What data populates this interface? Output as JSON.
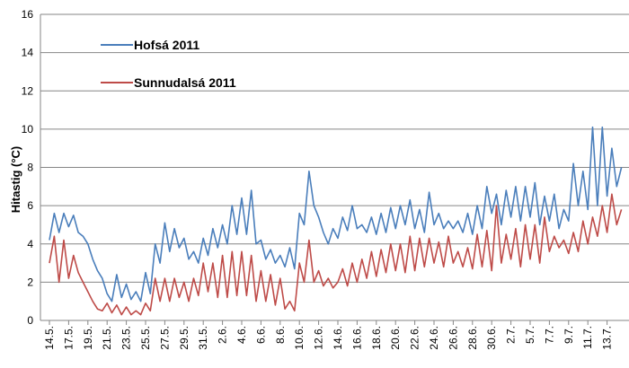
{
  "chart_data": {
    "type": "line",
    "ylabel": "Hitastig (°C)",
    "ylim": [
      0,
      16
    ],
    "yticks": [
      0,
      2,
      4,
      6,
      8,
      10,
      12,
      14,
      16
    ],
    "grid": true,
    "categories": [
      "14.5.",
      null,
      null,
      null,
      "17.5.",
      null,
      null,
      null,
      "19.5.",
      null,
      null,
      null,
      "21.5.",
      null,
      null,
      null,
      "23.5.",
      null,
      null,
      null,
      "25.5.",
      null,
      null,
      null,
      "27.5.",
      null,
      null,
      null,
      "29.5.",
      null,
      null,
      null,
      "31.5.",
      null,
      null,
      null,
      "2.6.",
      null,
      null,
      null,
      "4.6.",
      null,
      null,
      null,
      "6.6.",
      null,
      null,
      null,
      "8.6.",
      null,
      null,
      null,
      "10.6.",
      null,
      null,
      null,
      "12.6.",
      null,
      null,
      null,
      "14.6.",
      null,
      null,
      null,
      "16.6.",
      null,
      null,
      null,
      "18.6.",
      null,
      null,
      null,
      "20.6.",
      null,
      null,
      null,
      "22.6.",
      null,
      null,
      null,
      "24.6.",
      null,
      null,
      null,
      "26.6.",
      null,
      null,
      null,
      "28.6.",
      null,
      null,
      null,
      "30.6.",
      null,
      null,
      null,
      "2.7.",
      null,
      null,
      null,
      "5.7.",
      null,
      null,
      null,
      "7.7.",
      null,
      null,
      null,
      "9.7.",
      null,
      null,
      null,
      "11.7.",
      null,
      null,
      null,
      "13.7.",
      null,
      null,
      null
    ],
    "series": [
      {
        "name": "Hofsá 2011",
        "color": "#4a7ebb",
        "values": [
          4.2,
          5.6,
          4.6,
          5.6,
          4.9,
          5.5,
          4.6,
          4.4,
          4.0,
          3.2,
          2.6,
          2.2,
          1.4,
          1.0,
          2.4,
          1.2,
          1.9,
          1.1,
          1.5,
          1.0,
          2.5,
          1.4,
          4.0,
          3.0,
          5.1,
          3.6,
          4.8,
          3.8,
          4.3,
          3.2,
          3.6,
          3.0,
          4.3,
          3.4,
          4.8,
          3.8,
          5.0,
          4.0,
          6.0,
          4.5,
          6.4,
          4.5,
          6.8,
          4.0,
          4.2,
          3.2,
          3.7,
          3.0,
          3.4,
          2.8,
          3.8,
          2.7,
          5.6,
          5.0,
          7.8,
          6.0,
          5.4,
          4.6,
          4.0,
          4.8,
          4.3,
          5.4,
          4.7,
          6.0,
          4.8,
          5.0,
          4.6,
          5.4,
          4.5,
          5.6,
          4.6,
          5.9,
          4.8,
          6.0,
          5.0,
          6.3,
          4.8,
          5.8,
          4.6,
          6.7,
          5.0,
          5.6,
          4.8,
          5.2,
          4.8,
          5.2,
          4.6,
          5.6,
          4.5,
          6.0,
          4.8,
          7.0,
          5.6,
          6.6,
          5.0,
          6.8,
          5.4,
          7.0,
          5.2,
          7.0,
          5.4,
          7.2,
          5.0,
          6.5,
          5.2,
          6.6,
          4.8,
          5.8,
          5.2,
          8.2,
          6.0,
          7.8,
          5.8,
          10.1,
          6.0,
          10.1,
          6.5,
          9.0,
          7.0,
          8.0
        ]
      },
      {
        "name": "Sunnudalsá 2011",
        "color": "#be4b48",
        "values": [
          3.0,
          4.4,
          2.0,
          4.2,
          2.2,
          3.4,
          2.5,
          2.0,
          1.5,
          1.0,
          0.6,
          0.5,
          0.9,
          0.4,
          0.8,
          0.3,
          0.7,
          0.3,
          0.5,
          0.3,
          0.9,
          0.5,
          2.2,
          1.0,
          2.2,
          1.0,
          2.2,
          1.2,
          2.0,
          1.0,
          2.2,
          1.3,
          3.0,
          1.5,
          3.0,
          1.2,
          3.4,
          1.2,
          3.6,
          1.3,
          3.6,
          1.3,
          3.4,
          1.0,
          2.6,
          1.0,
          2.4,
          0.8,
          2.2,
          0.6,
          1.0,
          0.5,
          3.0,
          2.0,
          4.2,
          2.0,
          2.6,
          1.8,
          2.2,
          1.7,
          2.0,
          2.7,
          1.8,
          3.0,
          2.0,
          3.2,
          2.2,
          3.6,
          2.3,
          3.7,
          2.5,
          4.0,
          2.6,
          4.0,
          2.5,
          4.4,
          2.6,
          4.3,
          2.8,
          4.3,
          3.0,
          4.1,
          2.8,
          4.4,
          3.0,
          3.6,
          2.8,
          3.8,
          2.7,
          4.5,
          2.8,
          4.7,
          2.6,
          6.0,
          3.0,
          4.5,
          3.2,
          4.8,
          2.8,
          5.0,
          3.2,
          5.0,
          3.0,
          5.4,
          3.6,
          4.4,
          3.8,
          4.2,
          3.5,
          4.6,
          3.6,
          5.2,
          4.0,
          5.4,
          4.4,
          6.0,
          4.6,
          6.6,
          5.0,
          5.8
        ]
      }
    ]
  }
}
